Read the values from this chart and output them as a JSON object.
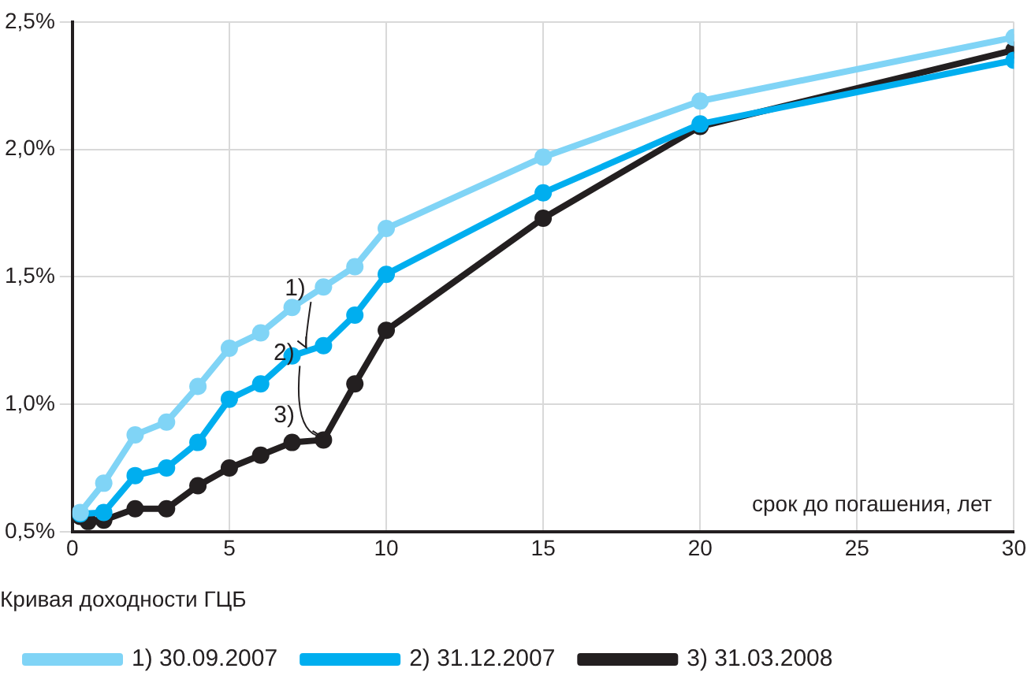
{
  "chart_data": {
    "type": "line",
    "legend_title": "Кривая доходности ГЦБ",
    "xlabel": "срок до погашения, лет",
    "xlim": [
      0,
      30
    ],
    "xticks": [
      0,
      5,
      10,
      15,
      20,
      25,
      30
    ],
    "ylim": [
      0.5,
      2.5
    ],
    "yticks": [
      {
        "value": 0.5,
        "label": "0,5%"
      },
      {
        "value": 1,
        "label": "1,0%"
      },
      {
        "value": 1.5,
        "label": "1,5%"
      },
      {
        "value": 2,
        "label": "2,0%"
      },
      {
        "value": 2.5,
        "label": "2,5%"
      }
    ],
    "grid": true,
    "legend": "bottom",
    "marker": "circle",
    "line_style": "solid",
    "annotations": [
      {
        "text": "1)",
        "x": 7.5,
        "y": 1.21
      },
      {
        "text": "2)",
        "x": 8,
        "y": 0.86
      },
      "3)"
    ],
    "series": [
      {
        "name": "1) 30.09.2007",
        "color": "#80d4f6",
        "x": [
          0.25,
          1,
          2,
          3,
          4,
          5,
          6,
          7,
          8,
          9,
          10,
          15,
          20,
          30
        ],
        "values": [
          0.575,
          0.69,
          0.88,
          0.93,
          1.07,
          1.22,
          1.28,
          1.38,
          1.46,
          1.54,
          1.69,
          1.97,
          2.19,
          2.44
        ]
      },
      {
        "name": "2) 31.12.2007",
        "color": "#00aeef",
        "x": [
          0.25,
          1,
          2,
          3,
          4,
          5,
          6,
          7,
          8,
          9,
          10,
          15,
          20,
          30
        ],
        "values": [
          0.57,
          0.575,
          0.72,
          0.75,
          0.85,
          1.02,
          1.08,
          1.19,
          1.23,
          1.35,
          1.51,
          1.83,
          2.1,
          2.35
        ]
      },
      {
        "name": "3) 31.03.2008",
        "color": "#231f20",
        "x": [
          0.25,
          0.5,
          1,
          2,
          3,
          4,
          5,
          6,
          7,
          8,
          9,
          10,
          15,
          20,
          30
        ],
        "values": [
          0.56,
          0.54,
          0.545,
          0.59,
          0.59,
          0.68,
          0.75,
          0.8,
          0.85,
          0.86,
          1.08,
          1.29,
          1.73,
          2.09,
          2.39
        ]
      }
    ]
  }
}
